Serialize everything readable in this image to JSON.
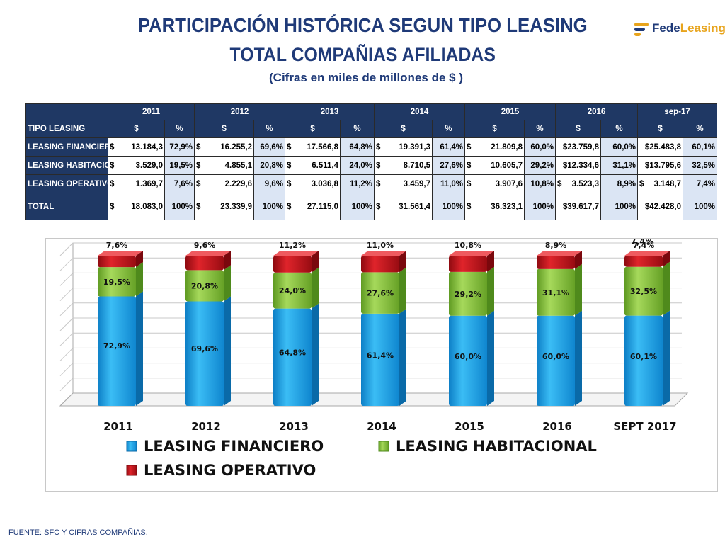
{
  "header": {
    "title_line1": "PARTICIPACIÓN HISTÓRICA SEGUN TIPO LEASING",
    "title_line2": "TOTAL COMPAÑIAS AFILIADAS",
    "subtitle": "(Cifras en miles de millones de $ )",
    "logo_part1": "Fede",
    "logo_part2": "Leasing"
  },
  "table": {
    "corner_label": "TIPO LEASING",
    "years": [
      "2011",
      "2012",
      "2013",
      "2014",
      "2015",
      "2016",
      "sep-17"
    ],
    "sub_headers": [
      "$",
      "%"
    ],
    "rows": [
      {
        "label": "LEASING FINANCIERO",
        "cells": [
          {
            "cur": "$",
            "amt": "13.184,3",
            "pct": "72,9%"
          },
          {
            "cur": "$",
            "amt": "16.255,2",
            "pct": "69,6%"
          },
          {
            "cur": "$",
            "amt": "17.566,8",
            "pct": "64,8%"
          },
          {
            "cur": "$",
            "amt": "19.391,3",
            "pct": "61,4%"
          },
          {
            "cur": "$",
            "amt": "21.809,8",
            "pct": "60,0%"
          },
          {
            "cur": "",
            "amt": "$23.759,8",
            "pct": "60,0%"
          },
          {
            "cur": "",
            "amt": "$25.483,8",
            "pct": "60,1%"
          }
        ]
      },
      {
        "label": "LEASING HABITACIONAL",
        "cells": [
          {
            "cur": "$",
            "amt": "3.529,0",
            "pct": "19,5%"
          },
          {
            "cur": "$",
            "amt": "4.855,1",
            "pct": "20,8%"
          },
          {
            "cur": "$",
            "amt": "6.511,4",
            "pct": "24,0%"
          },
          {
            "cur": "$",
            "amt": "8.710,5",
            "pct": "27,6%"
          },
          {
            "cur": "$",
            "amt": "10.605,7",
            "pct": "29,2%"
          },
          {
            "cur": "",
            "amt": "$12.334,6",
            "pct": "31,1%"
          },
          {
            "cur": "",
            "amt": "$13.795,6",
            "pct": "32,5%"
          }
        ]
      },
      {
        "label": "LEASING OPERATIVO",
        "cells": [
          {
            "cur": "$",
            "amt": "1.369,7",
            "pct": "7,6%"
          },
          {
            "cur": "$",
            "amt": "2.229,6",
            "pct": "9,6%"
          },
          {
            "cur": "$",
            "amt": "3.036,8",
            "pct": "11,2%"
          },
          {
            "cur": "$",
            "amt": "3.459,7",
            "pct": "11,0%"
          },
          {
            "cur": "$",
            "amt": "3.907,6",
            "pct": "10,8%"
          },
          {
            "cur": "$",
            "amt": "3.523,3",
            "pct": "8,9%"
          },
          {
            "cur": "$",
            "amt": "3.148,7",
            "pct": "7,4%"
          }
        ]
      },
      {
        "label": "TOTAL",
        "cells": [
          {
            "cur": "$",
            "amt": "18.083,0",
            "pct": "100%"
          },
          {
            "cur": "$",
            "amt": "23.339,9",
            "pct": "100%"
          },
          {
            "cur": "$",
            "amt": "27.115,0",
            "pct": "100%"
          },
          {
            "cur": "$",
            "amt": "31.561,4",
            "pct": "100%"
          },
          {
            "cur": "$",
            "amt": "36.323,1",
            "pct": "100%"
          },
          {
            "cur": "",
            "amt": "$39.617,7",
            "pct": "100%"
          },
          {
            "cur": "",
            "amt": "$42.428,0",
            "pct": "100%"
          }
        ]
      }
    ]
  },
  "chart_data": {
    "type": "bar",
    "stacked": true,
    "categories": [
      "2011",
      "2012",
      "2013",
      "2014",
      "2015",
      "2016",
      "SEPT 2017"
    ],
    "series": [
      {
        "name": "LEASING FINANCIERO",
        "color": "#1ba6ec",
        "values": [
          72.9,
          69.6,
          64.8,
          61.4,
          60.0,
          60.0,
          60.1
        ],
        "labels": [
          "72,9%",
          "69,6%",
          "64,8%",
          "61,4%",
          "60,0%",
          "60,0%",
          "60,1%"
        ]
      },
      {
        "name": "LEASING HABITACIONAL",
        "color": "#8cc63f",
        "values": [
          19.5,
          20.8,
          24.0,
          27.6,
          29.2,
          31.1,
          32.5
        ],
        "labels": [
          "19,5%",
          "20,8%",
          "24,0%",
          "27,6%",
          "29,2%",
          "31,1%",
          "32,5%"
        ]
      },
      {
        "name": "LEASING OPERATIVO",
        "color": "#c8161d",
        "values": [
          7.6,
          9.6,
          11.2,
          11.0,
          10.8,
          8.9,
          7.4
        ],
        "labels": [
          "7,6%",
          "9,6%",
          "11,2%",
          "11,0%",
          "10,8%",
          "8,9%",
          "7,4%"
        ]
      }
    ],
    "extra_annotation": "7,4%",
    "ylim": [
      0,
      100
    ],
    "grid": true,
    "legend_position": "bottom"
  },
  "footer": {
    "source": "FUENTE: SFC Y CIFRAS COMPAÑIAS."
  }
}
